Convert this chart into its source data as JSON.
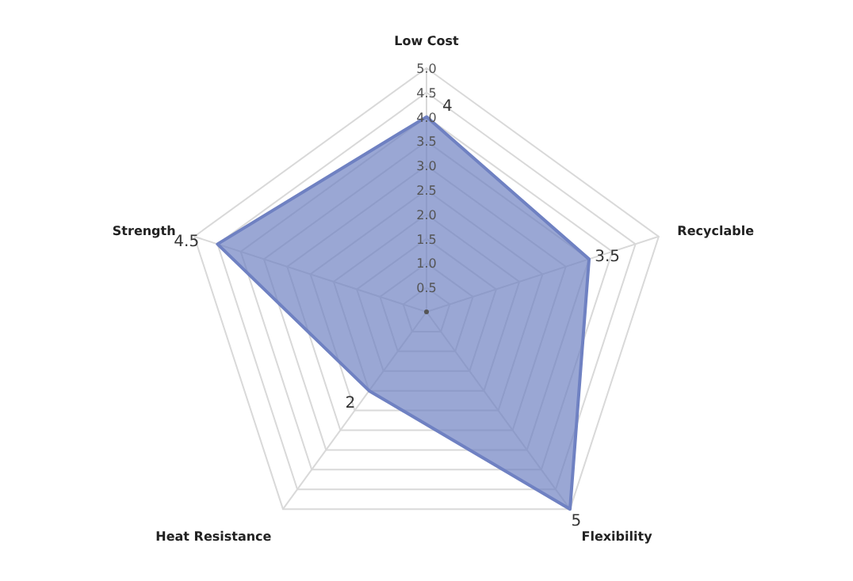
{
  "chart_data": {
    "type": "radar",
    "categories": [
      "Low Cost",
      "Recyclable",
      "Flexibility",
      "Heat Resistance",
      "Strength"
    ],
    "series": [
      {
        "color": "#6f81c2",
        "values": [
          4,
          3.5,
          5,
          2,
          4.5
        ]
      }
    ],
    "ylim": [
      0,
      5
    ],
    "yticks": [
      {
        "value": 0.5,
        "label": "0.5"
      },
      {
        "value": 1,
        "label": "1.0"
      },
      {
        "value": 1.5,
        "label": "1.5"
      },
      {
        "value": 2,
        "label": "2.0"
      },
      {
        "value": 2.5,
        "label": "2.5"
      },
      {
        "value": 3,
        "label": "3.0"
      },
      {
        "value": 3.5,
        "label": "3.5"
      },
      {
        "value": 4,
        "label": "4.0"
      },
      {
        "value": 4.5,
        "label": "4.5"
      },
      {
        "value": 5,
        "label": "5.0"
      }
    ],
    "grid": true,
    "data_labels": true
  }
}
